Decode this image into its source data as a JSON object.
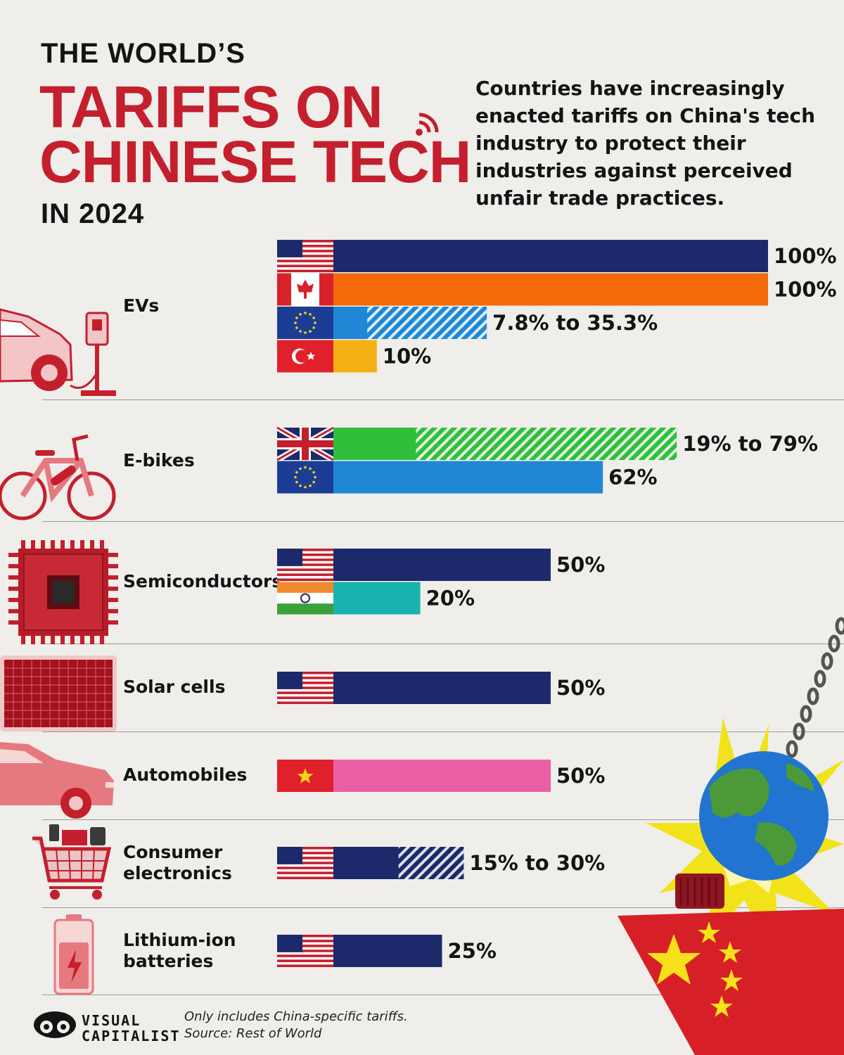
{
  "header": {
    "line1": "THE WORLD’S",
    "line2": "TARIFFS ON",
    "line3": "CHINESE TECH",
    "line4": "IN 2024",
    "intro": "Countries have increasingly enacted tariffs on China's tech industry to protect their industries against perceived unfair trade practices."
  },
  "chart_data": {
    "type": "bar",
    "orientation": "horizontal",
    "unit": "%",
    "xlim": [
      0,
      100
    ],
    "colors": {
      "usa": "#1c2a6b",
      "canada": "#f26a0a",
      "eu": "#1e88d6",
      "turkey": "#f5b014",
      "uk": "#2fbf3a",
      "india": "#1bb3b0",
      "vietnam": "#ea5fa6"
    },
    "groups": [
      {
        "category": "EVs",
        "bars": [
          {
            "country": "usa",
            "min": 100,
            "max": 100,
            "label": "100%"
          },
          {
            "country": "canada",
            "min": 100,
            "max": 100,
            "label": "100%"
          },
          {
            "country": "eu",
            "min": 7.8,
            "max": 35.3,
            "label": "7.8% to 35.3%"
          },
          {
            "country": "turkey",
            "min": 10,
            "max": 10,
            "label": "10%"
          }
        ]
      },
      {
        "category": "E-bikes",
        "bars": [
          {
            "country": "uk",
            "min": 19,
            "max": 79,
            "label": "19% to 79%"
          },
          {
            "country": "eu",
            "min": 62,
            "max": 62,
            "label": "62%"
          }
        ]
      },
      {
        "category": "Semiconductors",
        "bars": [
          {
            "country": "usa",
            "min": 50,
            "max": 50,
            "label": "50%"
          },
          {
            "country": "india",
            "min": 20,
            "max": 20,
            "label": "20%"
          }
        ]
      },
      {
        "category": "Solar cells",
        "bars": [
          {
            "country": "usa",
            "min": 50,
            "max": 50,
            "label": "50%"
          }
        ]
      },
      {
        "category": "Automobiles",
        "bars": [
          {
            "country": "vietnam",
            "min": 50,
            "max": 50,
            "label": "50%"
          }
        ]
      },
      {
        "category": "Consumer\nelectronics",
        "bars": [
          {
            "country": "usa",
            "min": 15,
            "max": 30,
            "label": "15% to 30%"
          }
        ]
      },
      {
        "category": "Lithium-ion\nbatteries",
        "bars": [
          {
            "country": "usa",
            "min": 25,
            "max": 25,
            "label": "25%"
          }
        ]
      }
    ]
  },
  "footer": {
    "note": "Only includes China-specific tariffs.",
    "source": "Source: Rest of World",
    "brand_line1": "VISUAL",
    "brand_line2": "CAPITALIST"
  }
}
